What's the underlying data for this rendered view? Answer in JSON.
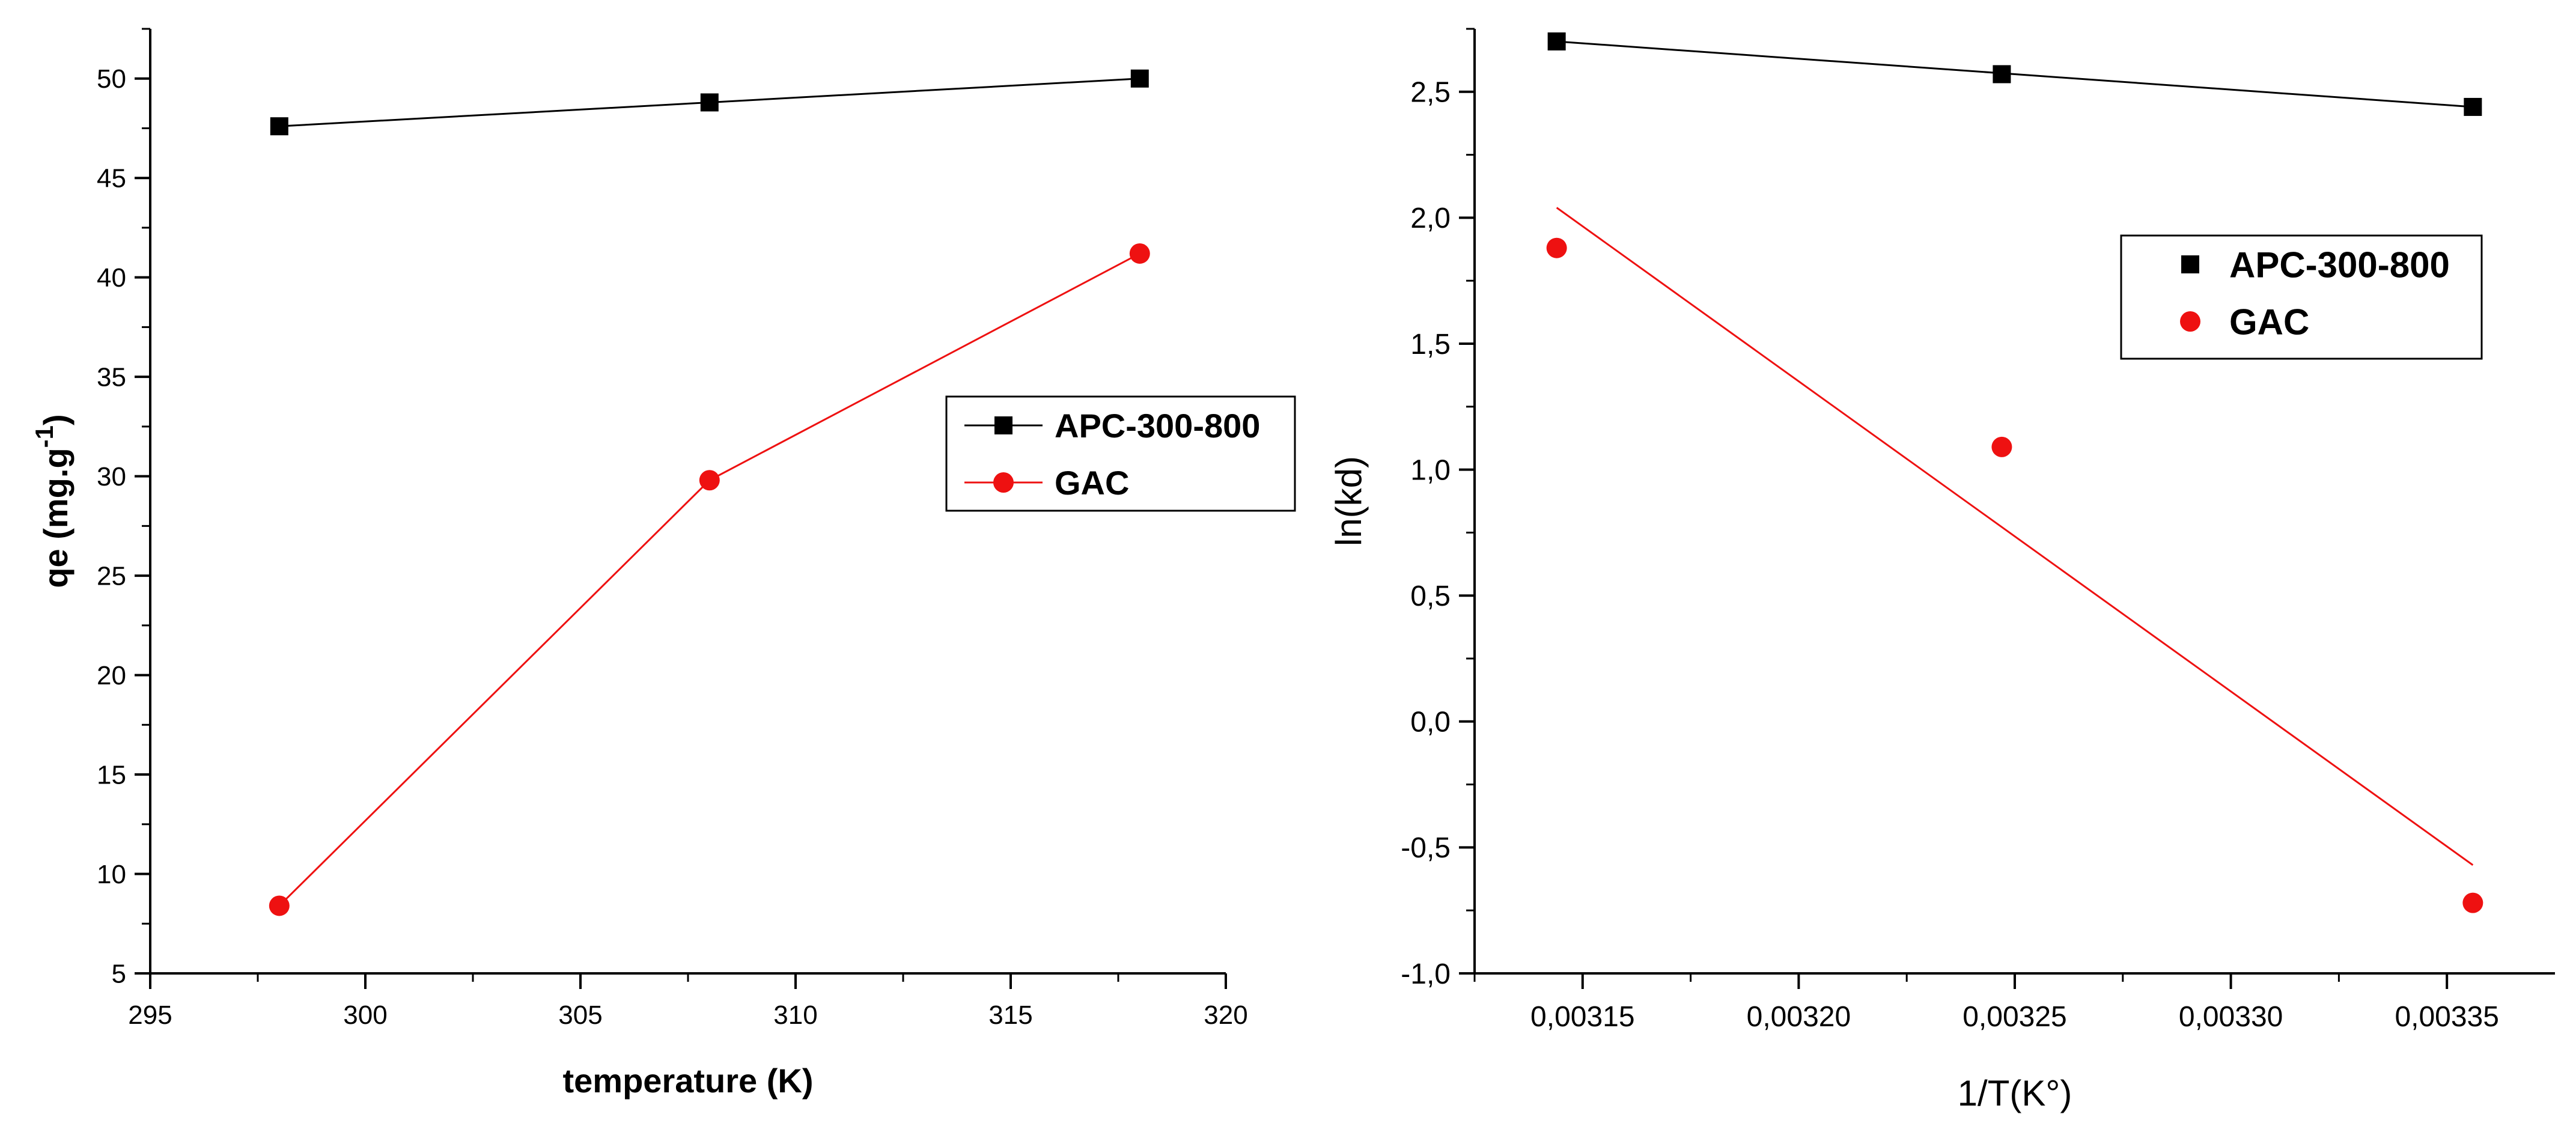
{
  "colors": {
    "series_black": "#000000",
    "series_red": "#ee1111",
    "background": "#ffffff"
  },
  "chart_data": [
    {
      "type": "line",
      "title": "",
      "xlabel": "temperature (K)",
      "ylabel": "qe (mg.g",
      "ylabel_superscript": "-1",
      "ylabel_suffix": ")",
      "xlim": [
        295,
        320
      ],
      "ylim": [
        5,
        52.5
      ],
      "xticks": [
        295,
        300,
        305,
        310,
        315,
        320
      ],
      "xtick_labels": [
        "295",
        "300",
        "305",
        "310",
        "315",
        "320"
      ],
      "yticks": [
        5,
        10,
        15,
        20,
        25,
        30,
        35,
        40,
        45,
        50
      ],
      "ytick_labels": [
        "5",
        "10",
        "15",
        "20",
        "25",
        "30",
        "35",
        "40",
        "45",
        "50"
      ],
      "legend_position": "center-right",
      "series": [
        {
          "name": "APC-300-800",
          "marker": "square",
          "color": "#000000",
          "x": [
            298,
            308,
            318
          ],
          "values": [
            47.6,
            48.8,
            50.0
          ],
          "line": "connect"
        },
        {
          "name": "GAC",
          "marker": "circle",
          "color": "#ee1111",
          "x": [
            298,
            308,
            318
          ],
          "values": [
            8.4,
            29.8,
            41.2
          ],
          "line": "connect"
        }
      ]
    },
    {
      "type": "scatter",
      "title": "",
      "xlabel": "1/T(K°)",
      "ylabel": "ln(kd)",
      "xlim": [
        0.003125,
        0.003375
      ],
      "ylim": [
        -1.0,
        2.75
      ],
      "xticks": [
        0.00315,
        0.0032,
        0.00325,
        0.0033,
        0.00335
      ],
      "xtick_labels": [
        "0,00315",
        "0,00320",
        "0,00325",
        "0,00330",
        "0,00335"
      ],
      "yticks": [
        -1.0,
        -0.5,
        0.0,
        0.5,
        1.0,
        1.5,
        2.0,
        2.5
      ],
      "ytick_labels": [
        "-1,0",
        "-0,5",
        "0,0",
        "0,5",
        "1,0",
        "1,5",
        "2,0",
        "2,5"
      ],
      "legend_position": "top-right",
      "series": [
        {
          "name": "APC-300-800",
          "marker": "square",
          "color": "#000000",
          "x": [
            0.003144,
            0.003247,
            0.003356
          ],
          "values": [
            2.7,
            2.57,
            2.44
          ],
          "line": "fit",
          "fit": [
            2.7,
            2.44
          ]
        },
        {
          "name": "GAC",
          "marker": "circle",
          "color": "#ee1111",
          "x": [
            0.003144,
            0.003247,
            0.003356
          ],
          "values": [
            1.88,
            1.09,
            -0.72
          ],
          "line": "fit",
          "fit": [
            2.04,
            -0.57
          ]
        }
      ]
    }
  ]
}
